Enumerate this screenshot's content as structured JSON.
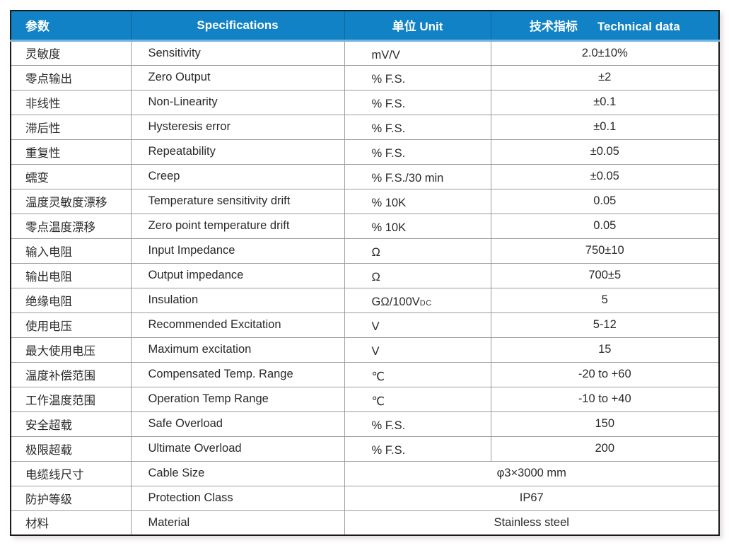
{
  "table": {
    "header": {
      "col1": "参数",
      "col2": "Specifications",
      "col3": "单位 Unit",
      "col4_zh": "技术指标",
      "col4_en": "Technical data"
    },
    "rows": [
      {
        "param": "灵敏度",
        "spec": "Sensitivity",
        "unit": "mV/V",
        "value": "2.0±10%"
      },
      {
        "param": "零点输出",
        "spec": "Zero Output",
        "unit": "% F.S.",
        "value": "±2"
      },
      {
        "param": "非线性",
        "spec": "Non-Linearity",
        "unit": "% F.S.",
        "value": "±0.1"
      },
      {
        "param": "滞后性",
        "spec": "Hysteresis error",
        "unit": "% F.S.",
        "value": "±0.1"
      },
      {
        "param": "重复性",
        "spec": "Repeatability",
        "unit": "% F.S.",
        "value": "±0.05"
      },
      {
        "param": "蠕变",
        "spec": "Creep",
        "unit": "% F.S./30 min",
        "value": "±0.05"
      },
      {
        "param": "温度灵敏度漂移",
        "spec": "Temperature sensitivity drift",
        "unit": "% 10K",
        "value": "0.05"
      },
      {
        "param": "零点温度漂移",
        "spec": "Zero point temperature drift",
        "unit": "% 10K",
        "value": "0.05"
      },
      {
        "param": "输入电阻",
        "spec": "Input Impedance",
        "unit": "Ω",
        "value": "750±10"
      },
      {
        "param": "输出电阻",
        "spec": "Output impedance",
        "unit": "Ω",
        "value": "700±5"
      },
      {
        "param": "绝缘电阻",
        "spec": "Insulation",
        "unit": "GΩ/100V",
        "unit_sub": "DC",
        "value": "5"
      },
      {
        "param": "使用电压",
        "spec": "Recommended Excitation",
        "unit": "V",
        "value": "5-12"
      },
      {
        "param": "最大使用电压",
        "spec": "Maximum excitation",
        "unit": "V",
        "value": "15"
      },
      {
        "param": "温度补偿范围",
        "spec": "Compensated Temp. Range",
        "unit": "℃",
        "value": "-20 to +60"
      },
      {
        "param": "工作温度范围",
        "spec": "Operation Temp Range",
        "unit": "℃",
        "value": "-10 to +40"
      },
      {
        "param": "安全超载",
        "spec": "Safe Overload",
        "unit": "% F.S.",
        "value": "150"
      },
      {
        "param": "极限超载",
        "spec": "Ultimate Overload",
        "unit": "% F.S.",
        "value": "200"
      },
      {
        "param": "电缆线尺寸",
        "spec": "Cable Size",
        "merged_value": "φ3×3000 mm"
      },
      {
        "param": "防护等级",
        "spec": "Protection Class",
        "merged_value": "IP67"
      },
      {
        "param": "材料",
        "spec": "Material",
        "merged_value": "Stainless steel"
      }
    ]
  },
  "colors": {
    "header_bg": "#1182c5",
    "header_text": "#ffffff",
    "header_strip": "#74b4dd",
    "border_dark": "#1a1a1a",
    "grid_line": "#9b9b9b",
    "body_text": "#2a2a2a"
  }
}
